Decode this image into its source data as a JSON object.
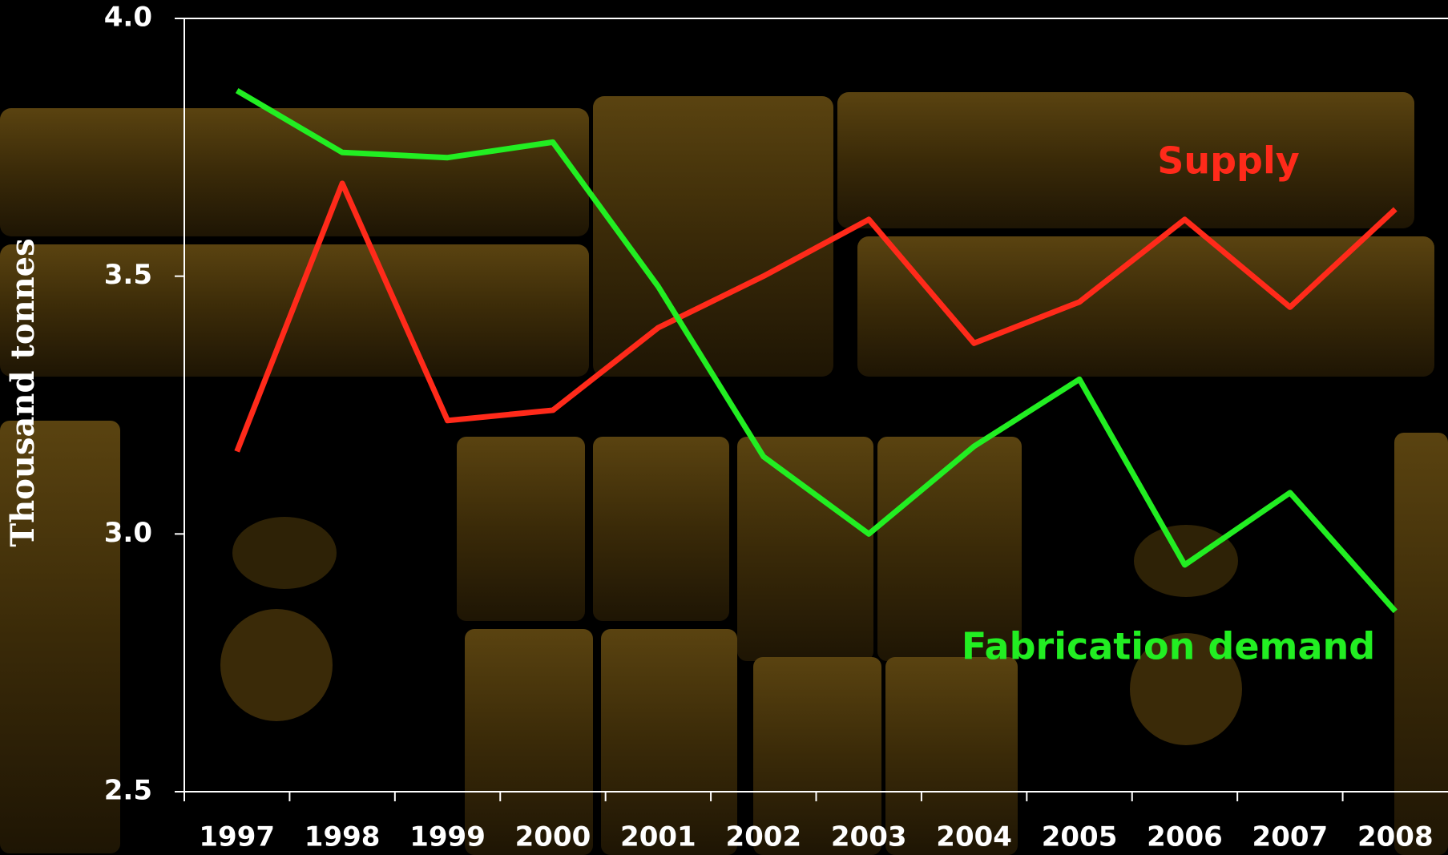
{
  "chart_data": {
    "type": "line",
    "y_label": "Thousand tonnes",
    "categories": [
      "1997",
      "1998",
      "1999",
      "2000",
      "2001",
      "2002",
      "2003",
      "2004",
      "2005",
      "2006",
      "2007",
      "2008"
    ],
    "series": [
      {
        "name": "Supply",
        "color": "#ff2a1a",
        "values": [
          3.16,
          3.68,
          3.22,
          3.24,
          3.4,
          3.5,
          3.61,
          3.37,
          3.45,
          3.61,
          3.44,
          3.63
        ]
      },
      {
        "name": "Fabrication demand",
        "color": "#22ee22",
        "values": [
          3.86,
          3.74,
          3.73,
          3.76,
          3.48,
          3.15,
          3.0,
          3.17,
          3.3,
          2.94,
          3.08,
          2.85
        ]
      }
    ],
    "ylim": [
      2.5,
      4.0
    ],
    "yticks": [
      2.5,
      {
        "value": 3,
        "label": "3.0"
      },
      3.5,
      {
        "value": 4,
        "label": "4.0"
      }
    ],
    "grid": false
  }
}
